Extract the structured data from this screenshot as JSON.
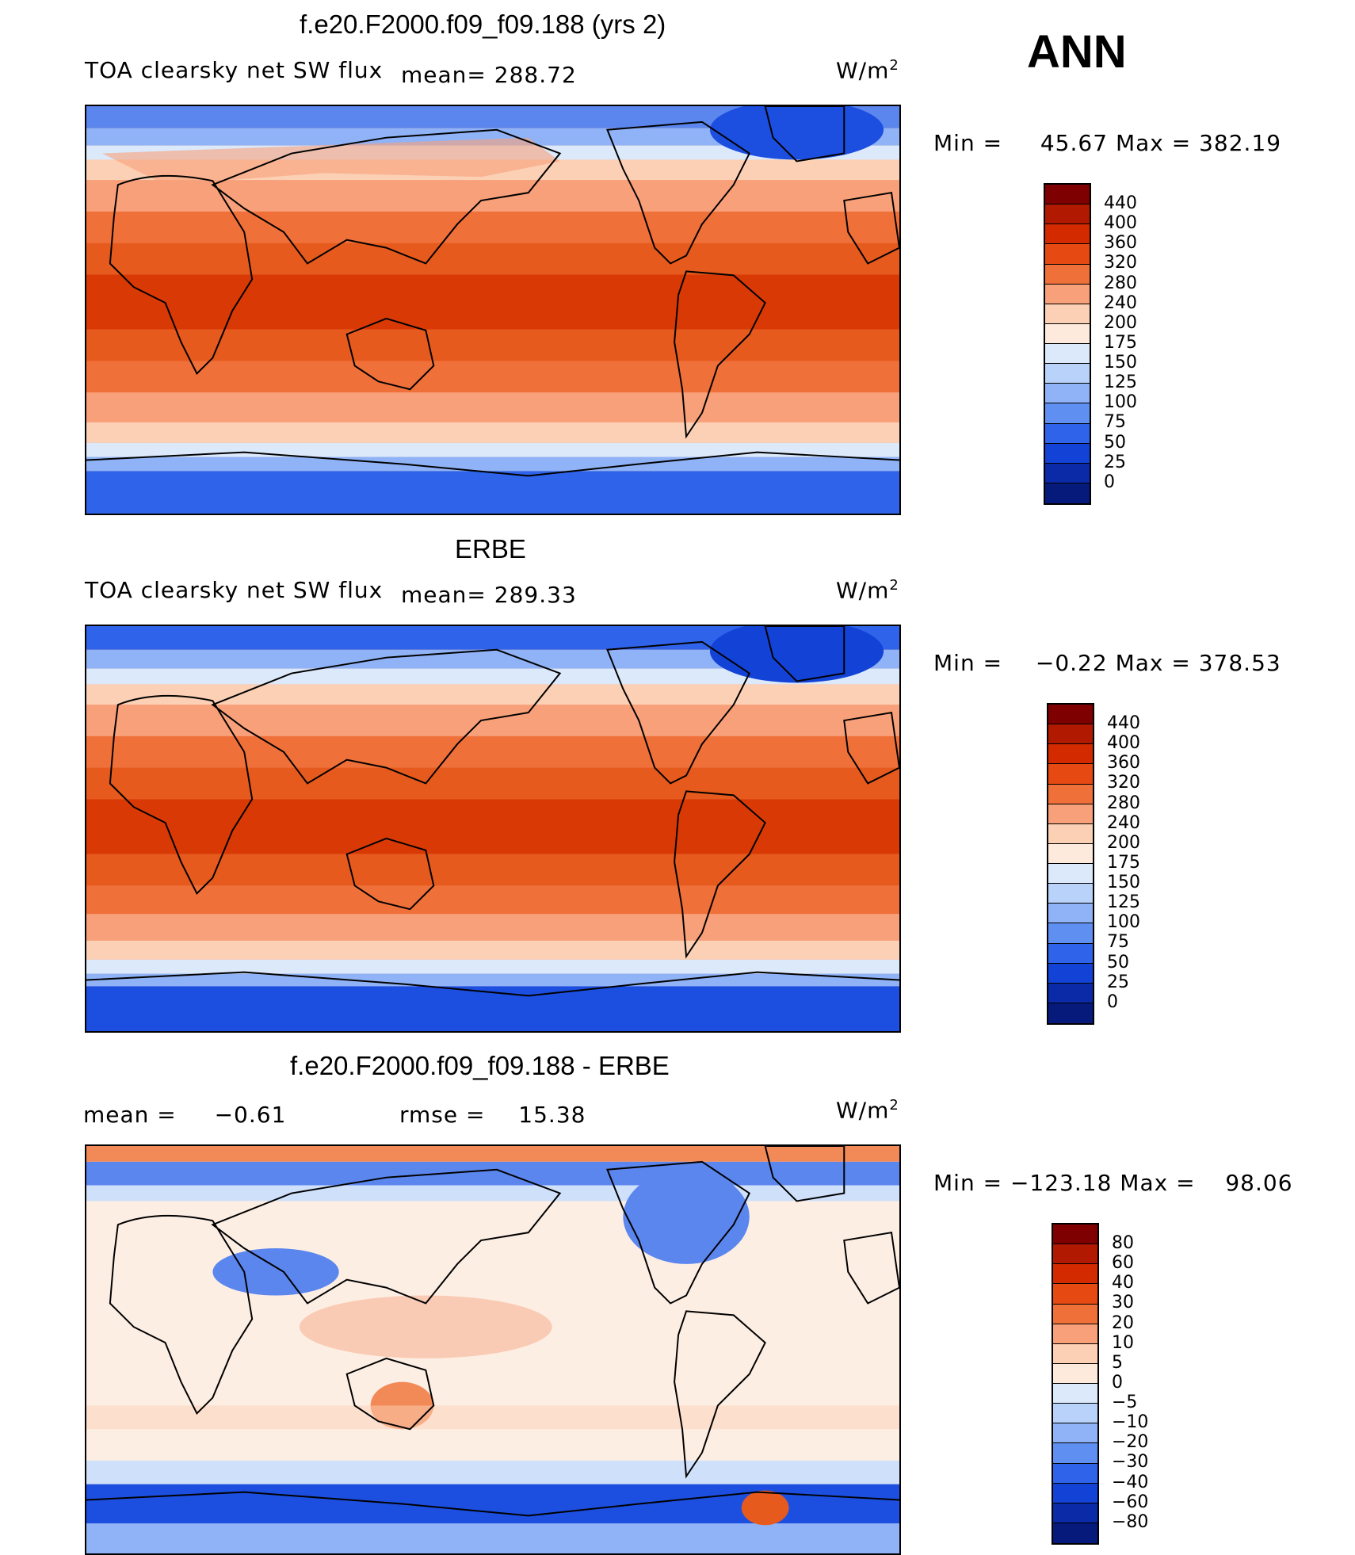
{
  "season": "ANN",
  "units_base": "W/m",
  "units_exp": "2",
  "panel1": {
    "title": "f.e20.F2000.f09_f09.188 (yrs 2)",
    "subtitle": "TOA clearsky net SW flux",
    "mean_label": "mean=",
    "mean_value": "288.72",
    "min_label": "Min =",
    "min_value": "45.67",
    "max_label": "Max =",
    "max_value": "382.19",
    "levels": [
      "440",
      "400",
      "360",
      "320",
      "280",
      "240",
      "200",
      "175",
      "150",
      "125",
      "100",
      "75",
      "50",
      "25",
      "0"
    ]
  },
  "panel2": {
    "title": "ERBE",
    "subtitle": "TOA clearsky net SW flux",
    "mean_label": "mean=",
    "mean_value": "289.33",
    "min_label": "Min =",
    "min_value": "−0.22",
    "max_label": "Max =",
    "max_value": "378.53",
    "levels": [
      "440",
      "400",
      "360",
      "320",
      "280",
      "240",
      "200",
      "175",
      "150",
      "125",
      "100",
      "75",
      "50",
      "25",
      "0"
    ]
  },
  "panel3": {
    "title": "f.e20.F2000.f09_f09.188 - ERBE",
    "mean_label": "mean =",
    "mean_value": "−0.61",
    "rmse_label": "rmse =",
    "rmse_value": "15.38",
    "min_label": "Min =",
    "min_value": "−123.18",
    "max_label": "Max =",
    "max_value": "98.06",
    "levels": [
      "80",
      "60",
      "40",
      "30",
      "20",
      "10",
      "5",
      "0",
      "−5",
      "−10",
      "−20",
      "−30",
      "−40",
      "−60",
      "−80"
    ]
  },
  "colors": [
    "#7f0000",
    "#b11a00",
    "#d42a00",
    "#e64a12",
    "#f0703a",
    "#f8a07a",
    "#fcd0b4",
    "#fdeadd",
    "#dce9fb",
    "#b9d2fa",
    "#8fb3f6",
    "#5f8ff0",
    "#2f64ea",
    "#1343d6",
    "#0a2aa8",
    "#051a7a"
  ],
  "map_colors": {
    "deep_red": "#d93a05",
    "mid_red": "#e65a1e",
    "orange": "#f28a58",
    "peach": "#f8b494",
    "pale": "#fcdcc8",
    "cream": "#fdeee4",
    "light_blue": "#cfe0fa",
    "blue": "#5b86ee",
    "deep_blue": "#1c4fe0"
  }
}
